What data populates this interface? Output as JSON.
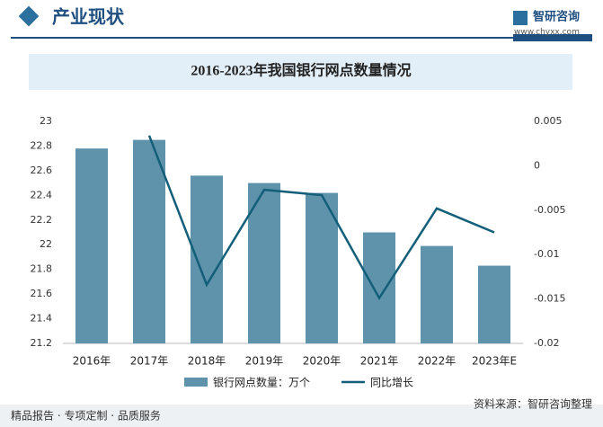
{
  "header": {
    "title": "产业现状",
    "brand": "智研咨询",
    "website": "www.chyxx.com"
  },
  "footer": {
    "slogan": "精品报告 · 专项定制 · 品质服务",
    "source": "资料来源：智研咨询整理"
  },
  "chart_data": {
    "type": "bar_line",
    "title": "2016-2023年我国银行网点数量情况",
    "categories": [
      "2016年",
      "2017年",
      "2018年",
      "2019年",
      "2020年",
      "2021年",
      "2022年",
      "2023年E"
    ],
    "series": [
      {
        "name": "银行网点数量：万个",
        "type": "bar",
        "color": "#5e93ab",
        "values": [
          22.78,
          22.85,
          22.56,
          22.5,
          22.42,
          22.1,
          21.99,
          21.83
        ]
      },
      {
        "name": "同比增长",
        "type": "line",
        "axis": "y2",
        "color": "#135e78",
        "values": [
          null,
          0.0034,
          -0.0134,
          -0.0027,
          -0.0033,
          -0.0149,
          -0.0048,
          -0.0075
        ]
      }
    ],
    "ylim": [
      21.2,
      23
    ],
    "yticks": [
      21.2,
      21.4,
      21.6,
      21.8,
      22,
      22.2,
      22.4,
      22.6,
      22.8,
      23
    ],
    "y2lim": [
      -0.02,
      0.005
    ],
    "y2ticks": [
      -0.02,
      -0.015,
      -0.01,
      -0.005,
      0,
      0.005
    ]
  }
}
